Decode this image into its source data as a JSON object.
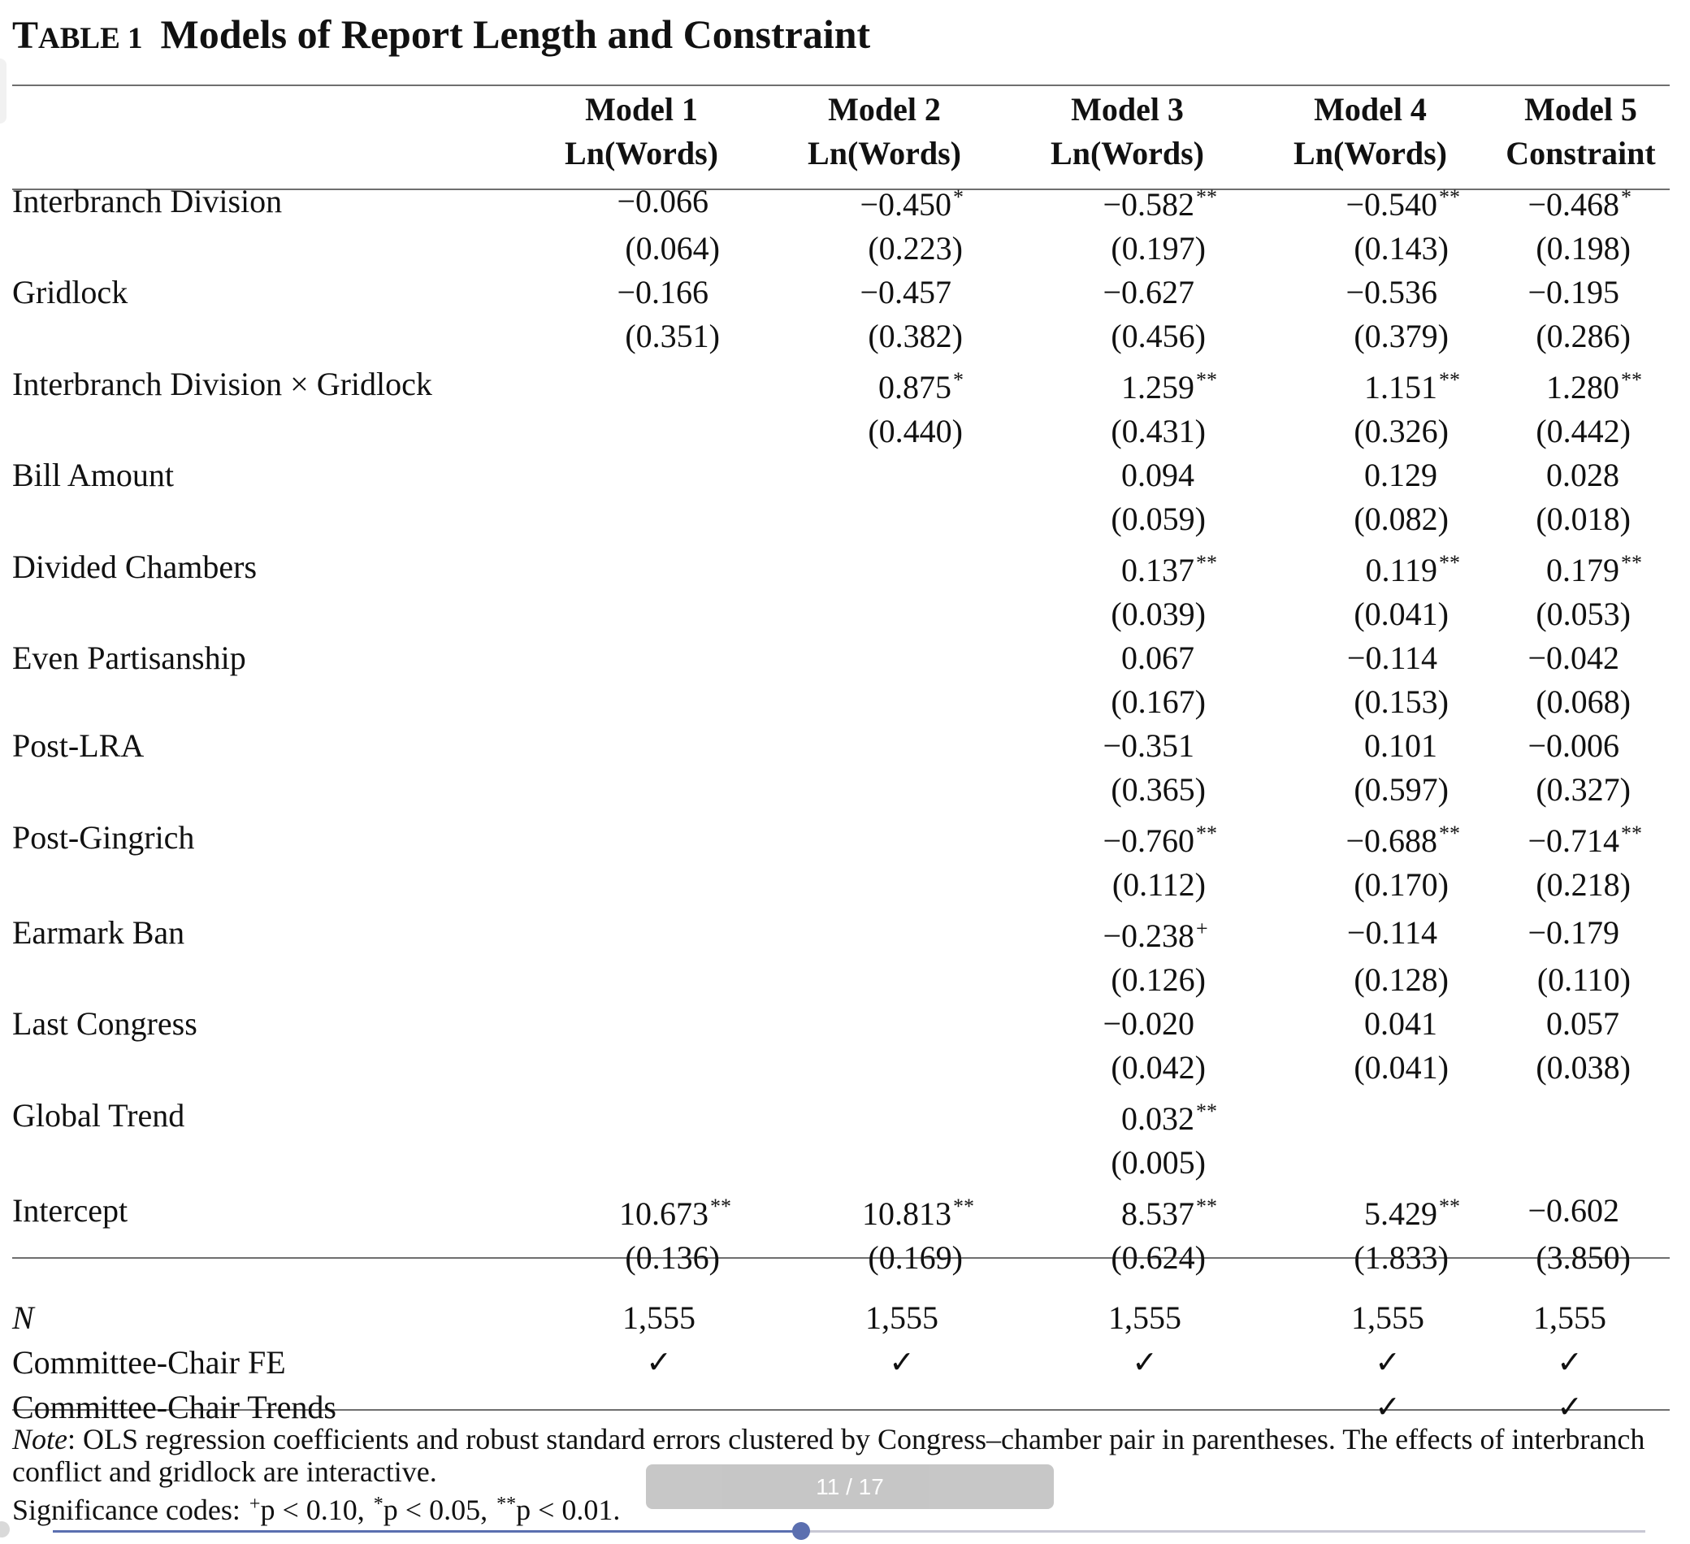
{
  "caption": {
    "label": "TABLE 1",
    "title": "Models of Report Length and Constraint"
  },
  "columns": [
    {
      "name": "Model 1",
      "dv": "Ln(Words)"
    },
    {
      "name": "Model 2",
      "dv": "Ln(Words)"
    },
    {
      "name": "Model 3",
      "dv": "Ln(Words)"
    },
    {
      "name": "Model 4",
      "dv": "Ln(Words)"
    },
    {
      "name": "Model 5",
      "dv": "Constraint"
    }
  ],
  "rows": [
    {
      "label": "Interbranch Division",
      "coef": [
        [
          "−0.066",
          ""
        ],
        [
          "−0.450",
          "*"
        ],
        [
          "−0.582",
          "**"
        ],
        [
          "−0.540",
          "**"
        ],
        [
          "−0.468",
          "*"
        ]
      ],
      "se": [
        "(0.064)",
        "(0.223)",
        "(0.197)",
        "(0.143)",
        "(0.198)"
      ]
    },
    {
      "label": "Gridlock",
      "coef": [
        [
          "−0.166",
          ""
        ],
        [
          "−0.457",
          ""
        ],
        [
          "−0.627",
          ""
        ],
        [
          "−0.536",
          ""
        ],
        [
          "−0.195",
          ""
        ]
      ],
      "se": [
        "(0.351)",
        "(0.382)",
        "(0.456)",
        "(0.379)",
        "(0.286)"
      ]
    },
    {
      "label": "Interbranch Division × Gridlock",
      "coef": [
        [
          "",
          ""
        ],
        [
          "0.875",
          "*"
        ],
        [
          "1.259",
          "**"
        ],
        [
          "1.151",
          "**"
        ],
        [
          "1.280",
          "**"
        ]
      ],
      "se": [
        "",
        "(0.440)",
        "(0.431)",
        "(0.326)",
        "(0.442)"
      ]
    },
    {
      "label": "Bill Amount",
      "coef": [
        [
          "",
          ""
        ],
        [
          "",
          ""
        ],
        [
          "0.094",
          ""
        ],
        [
          "0.129",
          ""
        ],
        [
          "0.028",
          ""
        ]
      ],
      "se": [
        "",
        "",
        "(0.059)",
        "(0.082)",
        "(0.018)"
      ]
    },
    {
      "label": "Divided Chambers",
      "coef": [
        [
          "",
          ""
        ],
        [
          "",
          ""
        ],
        [
          "0.137",
          "**"
        ],
        [
          "0.119",
          "**"
        ],
        [
          "0.179",
          "**"
        ]
      ],
      "se": [
        "",
        "",
        "(0.039)",
        "(0.041)",
        "(0.053)"
      ]
    },
    {
      "label": "Even Partisanship",
      "coef": [
        [
          "",
          ""
        ],
        [
          "",
          ""
        ],
        [
          "0.067",
          ""
        ],
        [
          "−0.114",
          ""
        ],
        [
          "−0.042",
          ""
        ]
      ],
      "se": [
        "",
        "",
        "(0.167)",
        "(0.153)",
        "(0.068)"
      ]
    },
    {
      "label": "Post-LRA",
      "coef": [
        [
          "",
          ""
        ],
        [
          "",
          ""
        ],
        [
          "−0.351",
          ""
        ],
        [
          "0.101",
          ""
        ],
        [
          "−0.006",
          ""
        ]
      ],
      "se": [
        "",
        "",
        "(0.365)",
        "(0.597)",
        "(0.327)"
      ]
    },
    {
      "label": "Post-Gingrich",
      "coef": [
        [
          "",
          ""
        ],
        [
          "",
          ""
        ],
        [
          "−0.760",
          "**"
        ],
        [
          "−0.688",
          "**"
        ],
        [
          "−0.714",
          "**"
        ]
      ],
      "se": [
        "",
        "",
        "(0.112)",
        "(0.170)",
        "(0.218)"
      ]
    },
    {
      "label": "Earmark Ban",
      "coef": [
        [
          "",
          ""
        ],
        [
          "",
          ""
        ],
        [
          "−0.238",
          "+"
        ],
        [
          "−0.114",
          ""
        ],
        [
          "−0.179",
          ""
        ]
      ],
      "se": [
        "",
        "",
        "(0.126)",
        "(0.128)",
        "(0.110)"
      ]
    },
    {
      "label": "Last Congress",
      "coef": [
        [
          "",
          ""
        ],
        [
          "",
          ""
        ],
        [
          "−0.020",
          ""
        ],
        [
          "0.041",
          ""
        ],
        [
          "0.057",
          ""
        ]
      ],
      "se": [
        "",
        "",
        "(0.042)",
        "(0.041)",
        "(0.038)"
      ]
    },
    {
      "label": "Global Trend",
      "coef": [
        [
          "",
          ""
        ],
        [
          "",
          ""
        ],
        [
          "0.032",
          "**"
        ],
        [
          "",
          ""
        ],
        [
          "",
          ""
        ]
      ],
      "se": [
        "",
        "",
        "(0.005)",
        "",
        ""
      ]
    },
    {
      "label": "Intercept",
      "coef": [
        [
          "10.673",
          "**"
        ],
        [
          "10.813",
          "**"
        ],
        [
          "8.537",
          "**"
        ],
        [
          "5.429",
          "**"
        ],
        [
          "−0.602",
          ""
        ]
      ],
      "se": [
        "(0.136)",
        "(0.169)",
        "(0.624)",
        "(1.833)",
        "(3.850)"
      ]
    }
  ],
  "stats": [
    {
      "label": "N",
      "values": [
        "1,555",
        "1,555",
        "1,555",
        "1,555",
        "1,555"
      ]
    },
    {
      "label": "Committee-Chair FE",
      "values": [
        "✓",
        "✓",
        "✓",
        "✓",
        "✓"
      ]
    },
    {
      "label": "Committee-Chair Trends",
      "values": [
        "",
        "",
        "",
        "✓",
        "✓"
      ]
    }
  ],
  "note": {
    "lead": "Note",
    "line1": ": OLS regression coefficients and robust standard errors clustered by Congress–chamber pair in parentheses. The effects of interbranch",
    "line2": "conflict and gridlock are interactive.",
    "sig_label": "Significance codes: ",
    "codes": [
      {
        "symbol": "+",
        "text": "p < 0.10, "
      },
      {
        "symbol": "*",
        "text": "p < 0.05, "
      },
      {
        "symbol": "**",
        "text": "p < 0.01."
      }
    ]
  },
  "viewer": {
    "page_indicator": "11 / 17",
    "progress": 0.47,
    "accent": "#5b6fb0"
  }
}
